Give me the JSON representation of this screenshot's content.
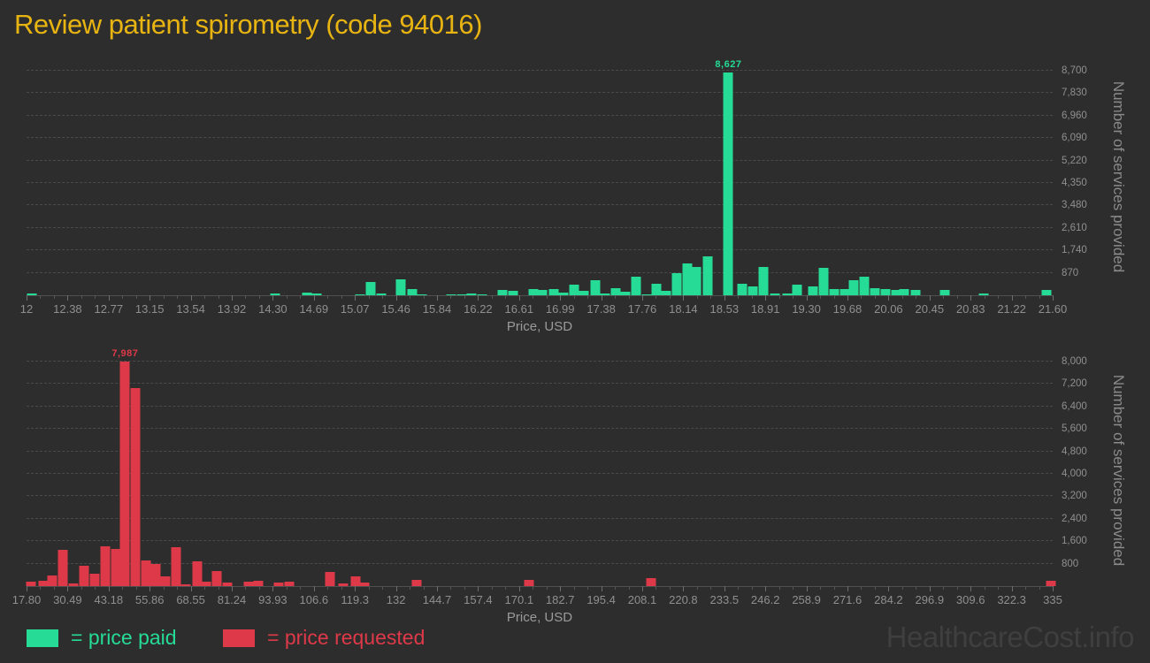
{
  "page": {
    "title": "Review patient spirometry (code 94016)",
    "watermark": "HealthcareCost.info"
  },
  "colors": {
    "background": "#2d2d2d",
    "title": "#e8b411",
    "price_paid": "#26db96",
    "price_requested": "#de3948",
    "axis_text": "#8f8f8f",
    "grid": "#4a4a4a",
    "watermark": "#3f3f3f"
  },
  "legend": {
    "paid_label": "= price paid",
    "requested_label": "= price requested"
  },
  "chart_data": [
    {
      "type": "bar",
      "series": "price paid",
      "color": "#26db96",
      "peak_label": "8,627",
      "peak_value": 8627,
      "xlabel": "Price, USD",
      "ylabel": "Number of services provided",
      "x_range": [
        12,
        21.6
      ],
      "ymax": 9212,
      "grid": "dashed-horizontal",
      "legend_position": "bottom-left",
      "xticks": [
        "12",
        "12.38",
        "12.77",
        "13.15",
        "13.54",
        "13.92",
        "14.30",
        "14.69",
        "15.07",
        "15.46",
        "15.84",
        "16.22",
        "16.61",
        "16.99",
        "17.38",
        "17.76",
        "18.14",
        "18.53",
        "18.91",
        "19.30",
        "19.68",
        "20.06",
        "20.45",
        "20.83",
        "21.22",
        "21.60"
      ],
      "ytick_labels": [
        "870",
        "1,740",
        "2,610",
        "3,480",
        "4,350",
        "5,220",
        "6,090",
        "6,960",
        "7,830",
        "8,700"
      ],
      "ytick_values": [
        870,
        1740,
        2610,
        3480,
        4350,
        5220,
        6090,
        6960,
        7830,
        8700
      ],
      "bars": [
        [
          0.005,
          70
        ],
        [
          0.242,
          60
        ],
        [
          0.273,
          100
        ],
        [
          0.283,
          70
        ],
        [
          0.325,
          50
        ],
        [
          0.335,
          510
        ],
        [
          0.346,
          70
        ],
        [
          0.365,
          600
        ],
        [
          0.376,
          225
        ],
        [
          0.385,
          40
        ],
        [
          0.414,
          30
        ],
        [
          0.424,
          40
        ],
        [
          0.434,
          60
        ],
        [
          0.444,
          50
        ],
        [
          0.464,
          215
        ],
        [
          0.474,
          185
        ],
        [
          0.494,
          235
        ],
        [
          0.503,
          195
        ],
        [
          0.514,
          245
        ],
        [
          0.523,
          120
        ],
        [
          0.534,
          400
        ],
        [
          0.543,
          175
        ],
        [
          0.554,
          580
        ],
        [
          0.564,
          80
        ],
        [
          0.574,
          285
        ],
        [
          0.584,
          140
        ],
        [
          0.594,
          735
        ],
        [
          0.604,
          30
        ],
        [
          0.614,
          460
        ],
        [
          0.623,
          165
        ],
        [
          0.634,
          870
        ],
        [
          0.644,
          1240
        ],
        [
          0.653,
          1100
        ],
        [
          0.664,
          1500
        ],
        [
          0.684,
          8627
        ],
        [
          0.697,
          430
        ],
        [
          0.708,
          340
        ],
        [
          0.718,
          1100
        ],
        [
          0.729,
          80
        ],
        [
          0.741,
          70
        ],
        [
          0.751,
          400
        ],
        [
          0.766,
          340
        ],
        [
          0.777,
          1060
        ],
        [
          0.787,
          250
        ],
        [
          0.797,
          250
        ],
        [
          0.806,
          580
        ],
        [
          0.816,
          730
        ],
        [
          0.827,
          290
        ],
        [
          0.837,
          250
        ],
        [
          0.847,
          210
        ],
        [
          0.855,
          250
        ],
        [
          0.866,
          210
        ],
        [
          0.895,
          210
        ],
        [
          0.933,
          80
        ],
        [
          0.994,
          210
        ]
      ]
    },
    {
      "type": "bar",
      "series": "price requested",
      "color": "#de3948",
      "peak_label": "7,987",
      "peak_value": 7987,
      "xlabel": "Price, USD",
      "ylabel": "Number of services provided",
      "x_range": [
        17.8,
        335
      ],
      "ymax": 8283,
      "grid": "dashed-horizontal",
      "legend_position": "bottom-left",
      "xticks": [
        "17.80",
        "30.49",
        "43.18",
        "55.86",
        "68.55",
        "81.24",
        "93.93",
        "106.6",
        "119.3",
        "132",
        "144.7",
        "157.4",
        "170.1",
        "182.7",
        "195.4",
        "208.1",
        "220.8",
        "233.5",
        "246.2",
        "258.9",
        "271.6",
        "284.2",
        "296.9",
        "309.6",
        "322.3",
        "335"
      ],
      "ytick_labels": [
        "800",
        "1,600",
        "2,400",
        "3,200",
        "4,000",
        "4,800",
        "5,600",
        "6,400",
        "7,200",
        "8,000"
      ],
      "ytick_values": [
        800,
        1600,
        2400,
        3200,
        4000,
        4800,
        5600,
        6400,
        7200,
        8000
      ],
      "bars": [
        [
          0.004,
          160
        ],
        [
          0.016,
          190
        ],
        [
          0.025,
          380
        ],
        [
          0.035,
          1290
        ],
        [
          0.046,
          95
        ],
        [
          0.056,
          720
        ],
        [
          0.066,
          440
        ],
        [
          0.077,
          1420
        ],
        [
          0.087,
          1320
        ],
        [
          0.096,
          7987
        ],
        [
          0.106,
          7050
        ],
        [
          0.116,
          920
        ],
        [
          0.126,
          790
        ],
        [
          0.135,
          340
        ],
        [
          0.146,
          1390
        ],
        [
          0.155,
          50
        ],
        [
          0.166,
          880
        ],
        [
          0.175,
          160
        ],
        [
          0.185,
          535
        ],
        [
          0.196,
          120
        ],
        [
          0.216,
          170
        ],
        [
          0.226,
          180
        ],
        [
          0.246,
          120
        ],
        [
          0.256,
          170
        ],
        [
          0.296,
          500
        ],
        [
          0.309,
          80
        ],
        [
          0.321,
          350
        ],
        [
          0.329,
          120
        ],
        [
          0.38,
          230
        ],
        [
          0.49,
          210
        ],
        [
          0.609,
          280
        ],
        [
          0.998,
          200
        ]
      ]
    }
  ]
}
